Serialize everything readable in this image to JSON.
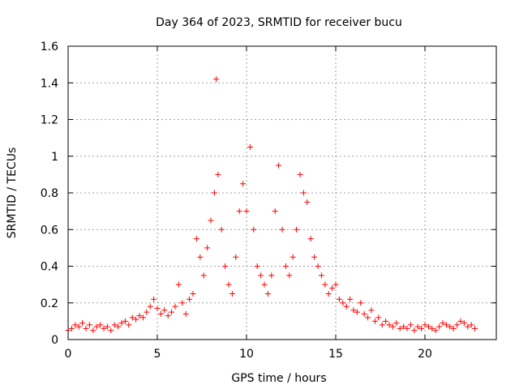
{
  "chart_data": {
    "type": "scatter",
    "title": "Day 364 of 2023, SRMTID for receiver bucu",
    "xlabel": "GPS time / hours",
    "ylabel": "SRMTID / TECUs",
    "xlim": [
      0,
      24.0
    ],
    "ylim": [
      0,
      1.6
    ],
    "x_ticks": [
      0,
      5,
      10,
      15,
      20
    ],
    "x_tick_labels": [
      "0",
      "5",
      "10",
      "15",
      "20"
    ],
    "y_ticks": [
      0,
      0.2,
      0.4,
      0.6,
      0.8,
      1.0,
      1.2,
      1.4,
      1.6
    ],
    "y_tick_labels": [
      "0",
      "0.2",
      "0.4",
      "0.6",
      "0.8",
      "1",
      "1.2",
      "1.4",
      "1.6"
    ],
    "grid": true,
    "marker": "+",
    "color": "#ff0000",
    "series": [
      {
        "name": "SRMTID",
        "points": [
          [
            0.0,
            0.05
          ],
          [
            0.2,
            0.06
          ],
          [
            0.4,
            0.08
          ],
          [
            0.6,
            0.07
          ],
          [
            0.8,
            0.09
          ],
          [
            1.0,
            0.06
          ],
          [
            1.2,
            0.08
          ],
          [
            1.4,
            0.05
          ],
          [
            1.6,
            0.07
          ],
          [
            1.8,
            0.08
          ],
          [
            2.0,
            0.06
          ],
          [
            2.2,
            0.07
          ],
          [
            2.4,
            0.05
          ],
          [
            2.6,
            0.08
          ],
          [
            2.8,
            0.07
          ],
          [
            3.0,
            0.09
          ],
          [
            3.2,
            0.1
          ],
          [
            3.4,
            0.08
          ],
          [
            3.6,
            0.12
          ],
          [
            3.8,
            0.11
          ],
          [
            4.0,
            0.13
          ],
          [
            4.2,
            0.12
          ],
          [
            4.4,
            0.15
          ],
          [
            4.6,
            0.18
          ],
          [
            4.8,
            0.22
          ],
          [
            5.0,
            0.17
          ],
          [
            5.2,
            0.14
          ],
          [
            5.4,
            0.16
          ],
          [
            5.6,
            0.13
          ],
          [
            5.8,
            0.15
          ],
          [
            6.0,
            0.18
          ],
          [
            6.2,
            0.3
          ],
          [
            6.4,
            0.2
          ],
          [
            6.6,
            0.14
          ],
          [
            6.8,
            0.22
          ],
          [
            7.0,
            0.25
          ],
          [
            7.2,
            0.55
          ],
          [
            7.4,
            0.45
          ],
          [
            7.6,
            0.35
          ],
          [
            7.8,
            0.5
          ],
          [
            8.0,
            0.65
          ],
          [
            8.2,
            0.8
          ],
          [
            8.3,
            1.42
          ],
          [
            8.4,
            0.9
          ],
          [
            8.6,
            0.6
          ],
          [
            8.8,
            0.4
          ],
          [
            9.0,
            0.3
          ],
          [
            9.2,
            0.25
          ],
          [
            9.4,
            0.45
          ],
          [
            9.6,
            0.7
          ],
          [
            9.8,
            0.85
          ],
          [
            10.0,
            0.7
          ],
          [
            10.2,
            1.05
          ],
          [
            10.4,
            0.6
          ],
          [
            10.6,
            0.4
          ],
          [
            10.8,
            0.35
          ],
          [
            11.0,
            0.3
          ],
          [
            11.2,
            0.25
          ],
          [
            11.4,
            0.35
          ],
          [
            11.6,
            0.7
          ],
          [
            11.8,
            0.95
          ],
          [
            12.0,
            0.6
          ],
          [
            12.2,
            0.4
          ],
          [
            12.4,
            0.35
          ],
          [
            12.6,
            0.45
          ],
          [
            12.8,
            0.6
          ],
          [
            13.0,
            0.9
          ],
          [
            13.2,
            0.8
          ],
          [
            13.4,
            0.75
          ],
          [
            13.6,
            0.55
          ],
          [
            13.8,
            0.45
          ],
          [
            14.0,
            0.4
          ],
          [
            14.2,
            0.35
          ],
          [
            14.4,
            0.3
          ],
          [
            14.6,
            0.25
          ],
          [
            14.8,
            0.28
          ],
          [
            15.0,
            0.3
          ],
          [
            15.2,
            0.22
          ],
          [
            15.4,
            0.2
          ],
          [
            15.6,
            0.18
          ],
          [
            15.8,
            0.22
          ],
          [
            16.0,
            0.16
          ],
          [
            16.2,
            0.15
          ],
          [
            16.4,
            0.2
          ],
          [
            16.6,
            0.14
          ],
          [
            16.8,
            0.12
          ],
          [
            17.0,
            0.16
          ],
          [
            17.2,
            0.1
          ],
          [
            17.4,
            0.12
          ],
          [
            17.6,
            0.08
          ],
          [
            17.8,
            0.1
          ],
          [
            18.0,
            0.08
          ],
          [
            18.2,
            0.07
          ],
          [
            18.4,
            0.09
          ],
          [
            18.6,
            0.06
          ],
          [
            18.8,
            0.07
          ],
          [
            19.0,
            0.06
          ],
          [
            19.2,
            0.08
          ],
          [
            19.4,
            0.05
          ],
          [
            19.6,
            0.07
          ],
          [
            19.8,
            0.06
          ],
          [
            20.0,
            0.08
          ],
          [
            20.2,
            0.07
          ],
          [
            20.4,
            0.06
          ],
          [
            20.6,
            0.05
          ],
          [
            20.8,
            0.07
          ],
          [
            21.0,
            0.09
          ],
          [
            21.2,
            0.08
          ],
          [
            21.4,
            0.07
          ],
          [
            21.6,
            0.06
          ],
          [
            21.8,
            0.08
          ],
          [
            22.0,
            0.1
          ],
          [
            22.2,
            0.09
          ],
          [
            22.4,
            0.07
          ],
          [
            22.6,
            0.08
          ],
          [
            22.8,
            0.06
          ]
        ]
      }
    ]
  }
}
